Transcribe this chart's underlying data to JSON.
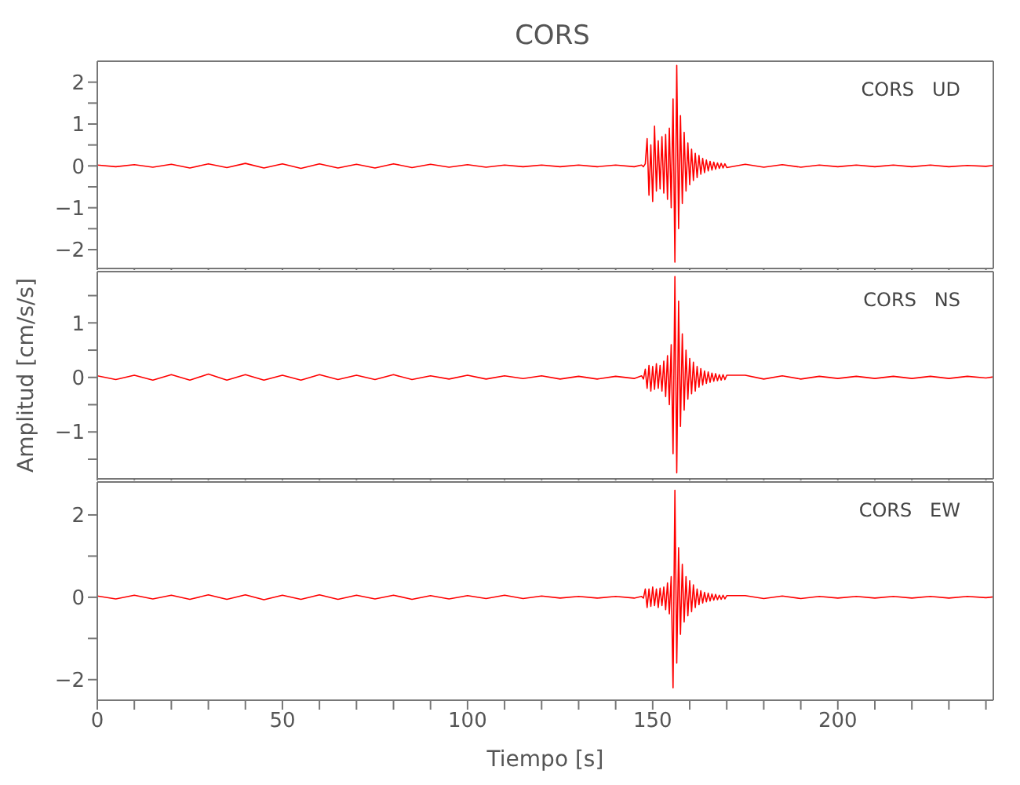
{
  "chart_data": [
    {
      "type": "line",
      "title": "CORS",
      "annotations": [
        "CORS   UD"
      ],
      "tick_labels": "y",
      "grid": false,
      "legend": false,
      "marker": "none",
      "line_style": "solid",
      "x": [
        0,
        5,
        10,
        15,
        20,
        25,
        30,
        35,
        40,
        45,
        50,
        55,
        60,
        65,
        70,
        75,
        80,
        85,
        90,
        95,
        100,
        105,
        110,
        115,
        120,
        125,
        130,
        135,
        140,
        145,
        147,
        147.5,
        148,
        148.5,
        149,
        149.5,
        150,
        150.5,
        151,
        151.5,
        152,
        152.5,
        153,
        153.5,
        154,
        154.5,
        155,
        155.5,
        156,
        156.5,
        157,
        157.5,
        158,
        158.5,
        159,
        159.5,
        160,
        160.5,
        161,
        161.5,
        162,
        162.5,
        163,
        163.5,
        164,
        164.5,
        165,
        165.5,
        166,
        166.5,
        167,
        167.5,
        168,
        168.5,
        169,
        169.5,
        170,
        175,
        180,
        185,
        190,
        195,
        200,
        205,
        210,
        215,
        220,
        225,
        230,
        235,
        240,
        242
      ],
      "series": [
        {
          "color": "#ff0000",
          "values": [
            0.02,
            -0.02,
            0.03,
            -0.03,
            0.04,
            -0.05,
            0.05,
            -0.04,
            0.06,
            -0.05,
            0.05,
            -0.06,
            0.05,
            -0.05,
            0.04,
            -0.05,
            0.05,
            -0.04,
            0.04,
            -0.03,
            0.03,
            -0.03,
            0.02,
            -0.02,
            0.02,
            -0.02,
            0.02,
            -0.02,
            0.02,
            -0.02,
            0.02,
            -0.02,
            0.05,
            0.65,
            -0.7,
            0.5,
            -0.85,
            0.95,
            -0.6,
            0.6,
            -0.55,
            0.7,
            -0.65,
            0.75,
            -0.8,
            0.9,
            -1.0,
            1.6,
            -2.3,
            2.4,
            -1.5,
            1.2,
            -0.9,
            0.8,
            -0.6,
            0.55,
            -0.45,
            0.4,
            -0.35,
            0.3,
            -0.28,
            0.25,
            -0.2,
            0.18,
            -0.16,
            0.14,
            -0.12,
            0.11,
            -0.1,
            0.09,
            -0.08,
            0.07,
            -0.06,
            0.06,
            -0.05,
            0.05,
            -0.04,
            0.04,
            -0.03,
            0.03,
            -0.03,
            0.02,
            -0.02,
            0.02,
            -0.02,
            0.02,
            -0.02,
            0.02,
            -0.02,
            0.01,
            -0.01,
            0.01
          ]
        }
      ],
      "xlim": [
        0,
        242
      ],
      "xticks": [
        0,
        {
          "value": 10,
          "label": null
        },
        {
          "value": 20,
          "label": null
        },
        {
          "value": 30,
          "label": null
        },
        {
          "value": 40,
          "label": null
        },
        50,
        {
          "value": 60,
          "label": null
        },
        {
          "value": 70,
          "label": null
        },
        {
          "value": 80,
          "label": null
        },
        {
          "value": 90,
          "label": null
        },
        100,
        {
          "value": 110,
          "label": null
        },
        {
          "value": 120,
          "label": null
        },
        {
          "value": 130,
          "label": null
        },
        {
          "value": 140,
          "label": null
        },
        150,
        {
          "value": 160,
          "label": null
        },
        {
          "value": 170,
          "label": null
        },
        {
          "value": 180,
          "label": null
        },
        {
          "value": 190,
          "label": null
        },
        200,
        {
          "value": 210,
          "label": null
        },
        {
          "value": 220,
          "label": null
        },
        {
          "value": 230,
          "label": null
        },
        {
          "value": 240,
          "label": null
        }
      ],
      "ylim": [
        -2.45,
        2.5
      ],
      "yticks": [
        -2,
        {
          "value": -1.5,
          "label": null
        },
        -1,
        {
          "value": -0.5,
          "label": null
        },
        0,
        {
          "value": 0.5,
          "label": null
        },
        1,
        {
          "value": 1.5,
          "label": null
        },
        2
      ]
    },
    {
      "type": "line",
      "ylabel": "Amplitud [cm/s/s]",
      "annotations": [
        "CORS   NS"
      ],
      "tick_labels": "y",
      "grid": false,
      "legend": false,
      "marker": "none",
      "line_style": "solid",
      "x": [
        0,
        5,
        10,
        15,
        20,
        25,
        30,
        35,
        40,
        45,
        50,
        55,
        60,
        65,
        70,
        75,
        80,
        85,
        90,
        95,
        100,
        105,
        110,
        115,
        120,
        125,
        130,
        135,
        140,
        145,
        147,
        147.5,
        148,
        148.5,
        149,
        149.5,
        150,
        150.5,
        151,
        151.5,
        152,
        152.5,
        153,
        153.5,
        154,
        154.5,
        155,
        155.5,
        156,
        156.5,
        157,
        157.5,
        158,
        158.5,
        159,
        159.5,
        160,
        160.5,
        161,
        161.5,
        162,
        162.5,
        163,
        163.5,
        164,
        164.5,
        165,
        165.5,
        166,
        166.5,
        167,
        167.5,
        168,
        168.5,
        169,
        169.5,
        170,
        175,
        180,
        185,
        190,
        195,
        200,
        205,
        210,
        215,
        220,
        225,
        230,
        235,
        240,
        242
      ],
      "series": [
        {
          "color": "#ff0000",
          "values": [
            0.03,
            -0.04,
            0.04,
            -0.05,
            0.05,
            -0.05,
            0.06,
            -0.05,
            0.05,
            -0.05,
            0.04,
            -0.05,
            0.05,
            -0.04,
            0.04,
            -0.04,
            0.05,
            -0.04,
            0.03,
            -0.03,
            0.04,
            -0.03,
            0.03,
            -0.02,
            0.03,
            -0.03,
            0.02,
            -0.03,
            0.02,
            -0.02,
            0.03,
            -0.03,
            0.15,
            -0.2,
            0.22,
            -0.25,
            0.2,
            -0.22,
            0.25,
            -0.2,
            0.22,
            -0.25,
            0.3,
            -0.35,
            0.4,
            -0.5,
            0.6,
            -1.4,
            1.85,
            -1.75,
            1.4,
            -0.9,
            0.8,
            -0.6,
            0.5,
            -0.4,
            0.35,
            -0.3,
            0.28,
            -0.25,
            0.2,
            -0.18,
            0.16,
            -0.14,
            0.12,
            -0.11,
            0.1,
            -0.09,
            0.08,
            -0.07,
            0.07,
            -0.06,
            0.05,
            -0.05,
            0.05,
            -0.04,
            0.04,
            0.04,
            -0.03,
            0.03,
            -0.03,
            0.02,
            -0.02,
            0.02,
            -0.02,
            0.02,
            -0.02,
            0.02,
            -0.02,
            0.02,
            -0.01,
            0.01
          ]
        }
      ],
      "xlim": [
        0,
        242
      ],
      "xticks": [
        0,
        {
          "value": 10,
          "label": null
        },
        {
          "value": 20,
          "label": null
        },
        {
          "value": 30,
          "label": null
        },
        {
          "value": 40,
          "label": null
        },
        50,
        {
          "value": 60,
          "label": null
        },
        {
          "value": 70,
          "label": null
        },
        {
          "value": 80,
          "label": null
        },
        {
          "value": 90,
          "label": null
        },
        100,
        {
          "value": 110,
          "label": null
        },
        {
          "value": 120,
          "label": null
        },
        {
          "value": 130,
          "label": null
        },
        {
          "value": 140,
          "label": null
        },
        150,
        {
          "value": 160,
          "label": null
        },
        {
          "value": 170,
          "label": null
        },
        {
          "value": 180,
          "label": null
        },
        {
          "value": 190,
          "label": null
        },
        200,
        {
          "value": 210,
          "label": null
        },
        {
          "value": 220,
          "label": null
        },
        {
          "value": 230,
          "label": null
        },
        {
          "value": 240,
          "label": null
        }
      ],
      "ylim": [
        -1.86,
        1.94
      ],
      "yticks": [
        {
          "value": -1.5,
          "label": null
        },
        -1,
        {
          "value": -0.5,
          "label": null
        },
        0,
        {
          "value": 0.5,
          "label": null
        },
        1,
        {
          "value": 1.5,
          "label": null
        }
      ]
    },
    {
      "type": "line",
      "xlabel": "Tiempo [s]",
      "annotations": [
        "CORS   EW"
      ],
      "grid": false,
      "legend": false,
      "marker": "none",
      "line_style": "solid",
      "x": [
        0,
        5,
        10,
        15,
        20,
        25,
        30,
        35,
        40,
        45,
        50,
        55,
        60,
        65,
        70,
        75,
        80,
        85,
        90,
        95,
        100,
        105,
        110,
        115,
        120,
        125,
        130,
        135,
        140,
        145,
        147,
        147.5,
        148,
        148.5,
        149,
        149.5,
        150,
        150.5,
        151,
        151.5,
        152,
        152.5,
        153,
        153.5,
        154,
        154.5,
        155,
        155.5,
        156,
        156.5,
        157,
        157.5,
        158,
        158.5,
        159,
        159.5,
        160,
        160.5,
        161,
        161.5,
        162,
        162.5,
        163,
        163.5,
        164,
        164.5,
        165,
        165.5,
        166,
        166.5,
        167,
        167.5,
        168,
        168.5,
        169,
        169.5,
        170,
        175,
        180,
        185,
        190,
        195,
        200,
        205,
        210,
        215,
        220,
        225,
        230,
        235,
        240,
        242
      ],
      "series": [
        {
          "color": "#ff0000",
          "values": [
            0.03,
            -0.04,
            0.05,
            -0.04,
            0.05,
            -0.05,
            0.06,
            -0.05,
            0.06,
            -0.06,
            0.05,
            -0.05,
            0.06,
            -0.05,
            0.05,
            -0.04,
            0.05,
            -0.05,
            0.04,
            -0.04,
            0.04,
            -0.03,
            0.05,
            -0.03,
            0.03,
            -0.02,
            0.02,
            -0.02,
            0.02,
            -0.02,
            0.02,
            -0.02,
            0.2,
            -0.25,
            0.2,
            -0.22,
            0.25,
            -0.2,
            0.2,
            -0.25,
            0.22,
            -0.2,
            0.25,
            -0.3,
            0.35,
            -0.4,
            0.5,
            -2.2,
            2.6,
            -1.6,
            1.2,
            -0.9,
            0.8,
            -0.6,
            0.5,
            -0.45,
            0.4,
            -0.35,
            0.3,
            -0.25,
            0.2,
            -0.18,
            0.16,
            -0.14,
            0.12,
            -0.11,
            0.1,
            -0.09,
            0.08,
            -0.07,
            0.07,
            -0.06,
            0.05,
            -0.05,
            0.05,
            -0.04,
            0.04,
            0.04,
            -0.03,
            0.03,
            -0.03,
            0.02,
            -0.02,
            0.02,
            -0.02,
            0.02,
            -0.02,
            0.02,
            -0.02,
            0.02,
            -0.01,
            0.01
          ]
        }
      ],
      "xlim": [
        0,
        242
      ],
      "xticks": [
        0,
        {
          "value": 10,
          "label": null
        },
        {
          "value": 20,
          "label": null
        },
        {
          "value": 30,
          "label": null
        },
        {
          "value": 40,
          "label": null
        },
        50,
        {
          "value": 60,
          "label": null
        },
        {
          "value": 70,
          "label": null
        },
        {
          "value": 80,
          "label": null
        },
        {
          "value": 90,
          "label": null
        },
        100,
        {
          "value": 110,
          "label": null
        },
        {
          "value": 120,
          "label": null
        },
        {
          "value": 130,
          "label": null
        },
        {
          "value": 140,
          "label": null
        },
        150,
        {
          "value": 160,
          "label": null
        },
        {
          "value": 170,
          "label": null
        },
        {
          "value": 180,
          "label": null
        },
        {
          "value": 190,
          "label": null
        },
        200,
        {
          "value": 210,
          "label": null
        },
        {
          "value": 220,
          "label": null
        },
        {
          "value": 230,
          "label": null
        },
        {
          "value": 240,
          "label": null
        }
      ],
      "ylim": [
        -2.5,
        2.8
      ],
      "yticks": [
        -2,
        {
          "value": -1,
          "label": null
        },
        0,
        {
          "value": 1,
          "label": null
        },
        2
      ]
    }
  ]
}
